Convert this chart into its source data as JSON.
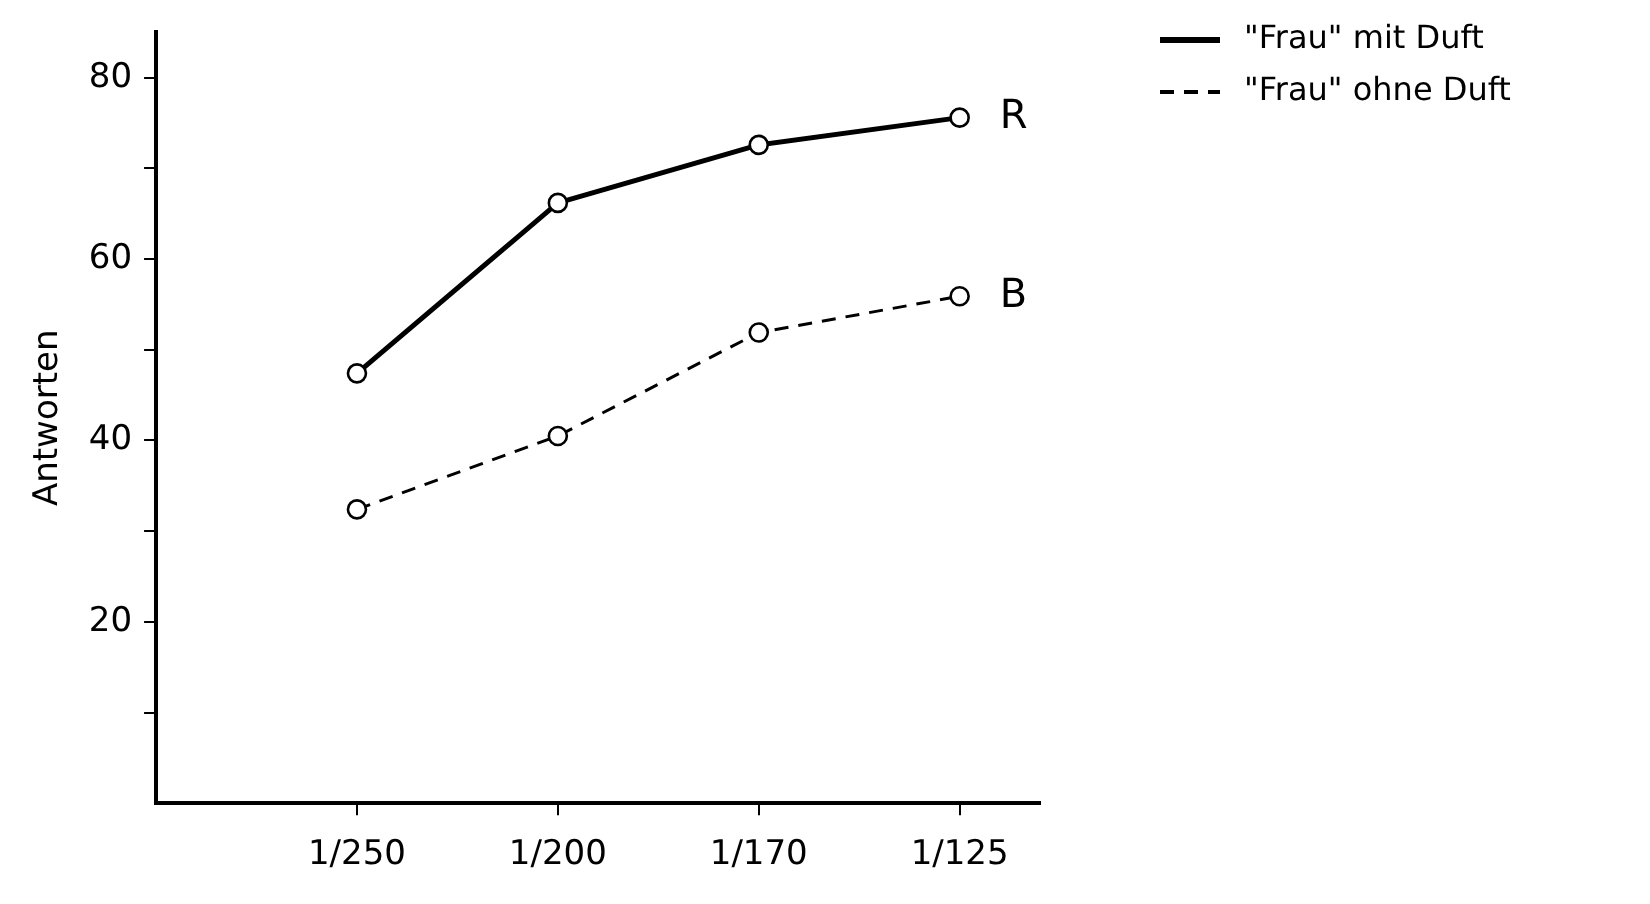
{
  "chart_data": {
    "type": "line",
    "ylabel": "Antworten",
    "categories": [
      "1/250",
      "1/200",
      "1/170",
      "1/125"
    ],
    "series": [
      {
        "name": "\"Frau\" mit Duft",
        "color": "#000000",
        "values": [
          47.4,
          66.2,
          72.6,
          75.6
        ],
        "line_style": "solid"
      },
      {
        "name": "\"Frau\" ohne Duft",
        "color": "#000000",
        "values": [
          32.4,
          40.5,
          51.9,
          55.9
        ],
        "line_style": "dashed"
      }
    ],
    "ylim": [
      0,
      85
    ],
    "yticks": [
      {
        "value": 10,
        "label": null
      },
      20,
      {
        "value": 30,
        "label": null
      },
      40,
      {
        "value": 50,
        "label": null
      },
      60,
      {
        "value": 70,
        "label": null
      },
      80
    ],
    "annotations": [
      {
        "text": "R",
        "x": "1/125",
        "y": 75.6
      },
      {
        "text": "B",
        "x": "1/125",
        "y": 55.9
      }
    ],
    "marker": "circle",
    "grid": false,
    "legend": "top right"
  }
}
